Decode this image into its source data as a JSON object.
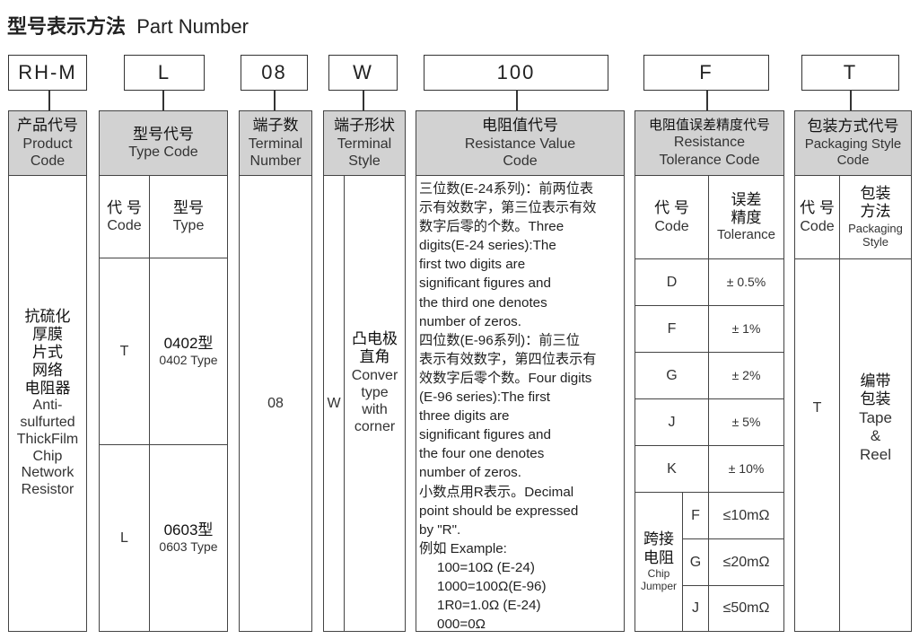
{
  "title": {
    "zh": "型号表示方法",
    "en": "Part Number"
  },
  "codes": [
    "RH-M",
    "L",
    "08",
    "W",
    "100",
    "F",
    "T"
  ],
  "product": {
    "header_zh": "产品代号",
    "header_en1": "Product",
    "header_en2": "Code",
    "desc_zh": [
      "抗硫化",
      "厚膜",
      "片式",
      "网络",
      "电阻器"
    ],
    "desc_en": [
      "Anti-",
      "sulfurted",
      "ThickFilm",
      "Chip",
      "Network",
      "Resistor"
    ]
  },
  "type": {
    "header_zh": "型号代号",
    "header_en": "Type Code",
    "code_zh": "代 号",
    "code_en": "Code",
    "type_zh": "型号",
    "type_en": "Type",
    "rows": [
      {
        "code": "T",
        "zh": "0402型",
        "en": "0402 Type"
      },
      {
        "code": "L",
        "zh": "0603型",
        "en": "0603 Type"
      }
    ]
  },
  "terminal_number": {
    "header_zh": "端子数",
    "header_en1": "Terminal",
    "header_en2": "Number",
    "value": "08"
  },
  "terminal_style": {
    "header_zh": "端子形状",
    "header_en1": "Terminal",
    "header_en2": "Style",
    "code": "W",
    "desc_zh1": "凸电极",
    "desc_zh2": "直角",
    "desc_en": [
      "Conver",
      "type",
      "with",
      "corner"
    ]
  },
  "resistance": {
    "header_zh": "电阻值代号",
    "header_en1": "Resistance Value",
    "header_en2": "Code",
    "lines": [
      "三位数(E-24系列)：前两位表",
      "示有效数字，第三位表示有效",
      "数字后零的个数。Three",
      "digits(E-24 series):The",
      "first two digits are",
      "significant  figures and",
      "the third one denotes",
      "number of zeros.",
      "四位数(E-96系列)：前三位",
      "表示有效数字，第四位表示有",
      "效数字后零个数。Four digits",
      "(E-96 series):The first",
      "three digits are",
      "significant figures and",
      "the four one denotes",
      "number of  zeros.",
      "小数点用R表示。Decimal",
      "point should be expressed",
      "by \"R\".",
      "例如 Example:"
    ],
    "examples": [
      "100=10Ω  (E-24)",
      "1000=100Ω(E-96)",
      "1R0=1.0Ω (E-24)",
      "000=0Ω"
    ]
  },
  "tolerance": {
    "header_zh": "电阻值误差精度代号",
    "header_en1": "Resistance",
    "header_en2": "Tolerance Code",
    "code_zh": "代 号",
    "code_en": "Code",
    "tol_zh1": "误差",
    "tol_zh2": "精度",
    "tol_en": "Tolerance",
    "rows": [
      {
        "code": "D",
        "value": "± 0.5%"
      },
      {
        "code": "F",
        "value": "± 1%"
      },
      {
        "code": "G",
        "value": "± 2%"
      },
      {
        "code": "J",
        "value": "± 5%"
      },
      {
        "code": "K",
        "value": "± 10%"
      }
    ],
    "jumper": {
      "zh1": "跨接",
      "zh2": "电阻",
      "en1": "Chip",
      "en2": "Jumper",
      "rows": [
        {
          "code": "F",
          "value": "≤10mΩ"
        },
        {
          "code": "G",
          "value": "≤20mΩ"
        },
        {
          "code": "J",
          "value": "≤50mΩ"
        }
      ]
    }
  },
  "packaging": {
    "header_zh": "包装方式代号",
    "header_en1": "Packaging Style",
    "header_en2": "Code",
    "code_zh": "代 号",
    "code_en": "Code",
    "style_zh1": "包装",
    "style_zh2": "方法",
    "style_en1": "Packaging",
    "style_en2": "Style",
    "code": "T",
    "desc_zh1": "编带",
    "desc_zh2": "包装",
    "desc_en1": "Tape",
    "desc_en2": "&",
    "desc_en3": "Reel"
  }
}
